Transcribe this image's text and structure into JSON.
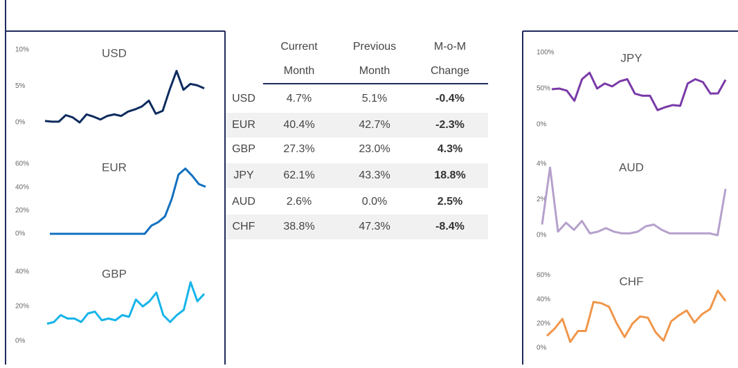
{
  "chart_data": [
    {
      "type": "line",
      "title": "USD",
      "color": "#0d2b5e",
      "ylim": [
        0,
        10
      ],
      "yticks": [
        {
          "value": 0,
          "label": "0%"
        },
        {
          "value": 5,
          "label": "5%"
        },
        {
          "value": 10,
          "label": "10%"
        }
      ],
      "values": [
        0.2,
        0.1,
        0.1,
        1.0,
        0.7,
        0.0,
        1.1,
        0.8,
        0.4,
        0.9,
        1.1,
        0.9,
        1.5,
        1.8,
        2.2,
        3.0,
        1.2,
        1.6,
        4.5,
        7.1,
        4.5,
        5.3,
        5.1,
        4.7
      ]
    },
    {
      "type": "line",
      "title": "EUR",
      "color": "#1170c0",
      "ylim": [
        0,
        60
      ],
      "yticks": [
        {
          "value": 0,
          "label": "0%"
        },
        {
          "value": 20,
          "label": "20%"
        },
        {
          "value": 40,
          "label": "40%"
        },
        {
          "value": 60,
          "label": "60%"
        }
      ],
      "values": [
        0,
        0,
        0,
        0,
        0,
        0,
        0,
        0,
        0,
        0,
        0,
        0,
        0,
        0,
        0,
        7,
        10,
        15,
        30,
        51,
        56,
        50,
        42.7,
        40.4
      ]
    },
    {
      "type": "line",
      "title": "GBP",
      "color": "#16b4ea",
      "ylim": [
        0,
        40
      ],
      "yticks": [
        {
          "value": 0,
          "label": "0%"
        },
        {
          "value": 20,
          "label": "20%"
        },
        {
          "value": 40,
          "label": "40%"
        }
      ],
      "values": [
        10,
        11,
        15,
        13,
        13,
        11,
        16,
        17,
        12,
        13,
        12,
        15,
        14,
        24,
        20,
        23,
        28,
        15,
        11,
        15,
        18,
        34,
        23.0,
        27.3
      ]
    },
    {
      "type": "line",
      "title": "JPY",
      "color": "#7a3aa8",
      "ylim": [
        0,
        100
      ],
      "yticks": [
        {
          "value": 0,
          "label": "0%"
        },
        {
          "value": 50,
          "label": "50%"
        },
        {
          "value": 100,
          "label": "100%"
        }
      ],
      "values": [
        49,
        50,
        47,
        33,
        63,
        72,
        50,
        57,
        53,
        60,
        63,
        43,
        40,
        40,
        20,
        24,
        27,
        26,
        57,
        63,
        59,
        43,
        43.3,
        62.1
      ]
    },
    {
      "type": "line",
      "title": "AUD",
      "color": "#b5a0cc",
      "ylim": [
        0,
        4
      ],
      "yticks": [
        {
          "value": 0,
          "label": "0%"
        },
        {
          "value": 2,
          "label": "2%"
        },
        {
          "value": 4,
          "label": "4%"
        }
      ],
      "values": [
        0.6,
        3.8,
        0.2,
        0.7,
        0.3,
        0.8,
        0.1,
        0.2,
        0.4,
        0.2,
        0.1,
        0.1,
        0.2,
        0.5,
        0.6,
        0.3,
        0.1,
        0.1,
        0.1,
        0.1,
        0.1,
        0.1,
        0.0,
        2.6
      ]
    },
    {
      "type": "line",
      "title": "CHF",
      "color": "#f0964a",
      "ylim": [
        0,
        60
      ],
      "yticks": [
        {
          "value": 0,
          "label": "0%"
        },
        {
          "value": 20,
          "label": "20%"
        },
        {
          "value": 40,
          "label": "40%"
        },
        {
          "value": 60,
          "label": "60%"
        }
      ],
      "values": [
        10,
        16,
        24,
        5,
        14,
        14,
        38,
        37,
        34,
        20,
        9,
        20,
        26,
        25,
        13,
        6,
        22,
        27,
        31,
        21,
        28,
        32,
        47.3,
        38.8
      ]
    }
  ],
  "table": {
    "header": [
      [
        "Current",
        "Month"
      ],
      [
        "Previous",
        "Month"
      ],
      [
        "M-o-M",
        "Change"
      ]
    ],
    "rows": [
      [
        "USD",
        "4.7%",
        "5.1%",
        "-0.4%"
      ],
      [
        "EUR",
        "40.4%",
        "42.7%",
        "-2.3%"
      ],
      [
        "GBP",
        "27.3%",
        "23.0%",
        "4.3%"
      ],
      [
        "JPY",
        "62.1%",
        "43.3%",
        "18.8%"
      ],
      [
        "AUD",
        "2.6%",
        "0.0%",
        "2.5%"
      ],
      [
        "CHF",
        "38.8%",
        "47.3%",
        "-8.4%"
      ]
    ]
  }
}
